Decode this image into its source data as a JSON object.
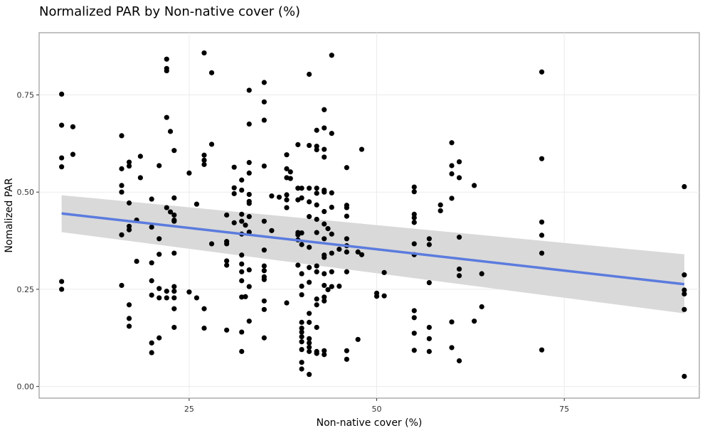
{
  "chart_data": {
    "type": "scatter",
    "title": "Normalized PAR by Non-native cover (%)",
    "xlabel": "Non-native cover (%)",
    "ylabel": "Nomalized PAR",
    "xlim": [
      5,
      93
    ],
    "ylim": [
      -0.03,
      0.91
    ],
    "x_ticks": [
      25,
      50,
      75
    ],
    "x_tick_labels": [
      "25",
      "50",
      "75"
    ],
    "y_ticks": [
      0.0,
      0.25,
      0.5,
      0.75
    ],
    "y_tick_labels": [
      "0.00",
      "0.25",
      "0.50",
      "0.75"
    ],
    "grid": true,
    "legend": "none",
    "point_color": "#000000",
    "trend": {
      "type": "linear",
      "x": [
        8,
        91
      ],
      "y": [
        0.445,
        0.263
      ],
      "ci_lower": [
        0.397,
        0.188
      ],
      "ci_upper": [
        0.492,
        0.34
      ],
      "line_color": "#5b7bde",
      "band_color": "#d9d9d9"
    },
    "points": [
      [
        8,
        0.752
      ],
      [
        8,
        0.672
      ],
      [
        8,
        0.588
      ],
      [
        8,
        0.565
      ],
      [
        8,
        0.27
      ],
      [
        8,
        0.25
      ],
      [
        9.5,
        0.668
      ],
      [
        9.5,
        0.597
      ],
      [
        16,
        0.645
      ],
      [
        16,
        0.56
      ],
      [
        16,
        0.517
      ],
      [
        16,
        0.5
      ],
      [
        16,
        0.39
      ],
      [
        16,
        0.26
      ],
      [
        17,
        0.577
      ],
      [
        17,
        0.567
      ],
      [
        17,
        0.472
      ],
      [
        17,
        0.412
      ],
      [
        17,
        0.403
      ],
      [
        17,
        0.21
      ],
      [
        17,
        0.175
      ],
      [
        17,
        0.155
      ],
      [
        18,
        0.428
      ],
      [
        18,
        0.322
      ],
      [
        18.5,
        0.592
      ],
      [
        18.5,
        0.537
      ],
      [
        20,
        0.482
      ],
      [
        20,
        0.41
      ],
      [
        20,
        0.318
      ],
      [
        20,
        0.272
      ],
      [
        20,
        0.235
      ],
      [
        20,
        0.112
      ],
      [
        20,
        0.087
      ],
      [
        21,
        0.568
      ],
      [
        21,
        0.38
      ],
      [
        21,
        0.34
      ],
      [
        21,
        0.252
      ],
      [
        21,
        0.228
      ],
      [
        21,
        0.125
      ],
      [
        22,
        0.842
      ],
      [
        22,
        0.818
      ],
      [
        22,
        0.812
      ],
      [
        22,
        0.692
      ],
      [
        22,
        0.46
      ],
      [
        22,
        0.245
      ],
      [
        22,
        0.228
      ],
      [
        22.5,
        0.656
      ],
      [
        22.5,
        0.449
      ],
      [
        23,
        0.607
      ],
      [
        23,
        0.485
      ],
      [
        23,
        0.441
      ],
      [
        23,
        0.428
      ],
      [
        23,
        0.425
      ],
      [
        23,
        0.343
      ],
      [
        23,
        0.257
      ],
      [
        23,
        0.245
      ],
      [
        23,
        0.228
      ],
      [
        23,
        0.2
      ],
      [
        23,
        0.152
      ],
      [
        25,
        0.549
      ],
      [
        25,
        0.243
      ],
      [
        26,
        0.469
      ],
      [
        26,
        0.228
      ],
      [
        27,
        0.858
      ],
      [
        27,
        0.595
      ],
      [
        27,
        0.582
      ],
      [
        27,
        0.571
      ],
      [
        27,
        0.2
      ],
      [
        27,
        0.15
      ],
      [
        28,
        0.807
      ],
      [
        28,
        0.623
      ],
      [
        28,
        0.367
      ],
      [
        30,
        0.441
      ],
      [
        30,
        0.373
      ],
      [
        30,
        0.367
      ],
      [
        30,
        0.323
      ],
      [
        30,
        0.312
      ],
      [
        30,
        0.145
      ],
      [
        31,
        0.564
      ],
      [
        31,
        0.511
      ],
      [
        31,
        0.496
      ],
      [
        31,
        0.421
      ],
      [
        32,
        0.531
      ],
      [
        32,
        0.505
      ],
      [
        32,
        0.443
      ],
      [
        32,
        0.425
      ],
      [
        32,
        0.392
      ],
      [
        32,
        0.338
      ],
      [
        32,
        0.315
      ],
      [
        32,
        0.295
      ],
      [
        32,
        0.272
      ],
      [
        32,
        0.23
      ],
      [
        32,
        0.14
      ],
      [
        32,
        0.09
      ],
      [
        32.5,
        0.415
      ],
      [
        32.5,
        0.231
      ],
      [
        33,
        0.762
      ],
      [
        33,
        0.675
      ],
      [
        33,
        0.576
      ],
      [
        33,
        0.549
      ],
      [
        33,
        0.494
      ],
      [
        33,
        0.476
      ],
      [
        33,
        0.471
      ],
      [
        33,
        0.437
      ],
      [
        33,
        0.397
      ],
      [
        33,
        0.3
      ],
      [
        33,
        0.257
      ],
      [
        33,
        0.168
      ],
      [
        35,
        0.782
      ],
      [
        35,
        0.732
      ],
      [
        35,
        0.685
      ],
      [
        35,
        0.567
      ],
      [
        35,
        0.425
      ],
      [
        35,
        0.351
      ],
      [
        35,
        0.31
      ],
      [
        35,
        0.298
      ],
      [
        35,
        0.282
      ],
      [
        35,
        0.275
      ],
      [
        35,
        0.22
      ],
      [
        35,
        0.198
      ],
      [
        35,
        0.125
      ],
      [
        36,
        0.401
      ],
      [
        36,
        0.49
      ],
      [
        37,
        0.487
      ],
      [
        38,
        0.596
      ],
      [
        38,
        0.56
      ],
      [
        38,
        0.537
      ],
      [
        38,
        0.493
      ],
      [
        38,
        0.48
      ],
      [
        38,
        0.46
      ],
      [
        38,
        0.215
      ],
      [
        38.5,
        0.552
      ],
      [
        38.5,
        0.535
      ],
      [
        39.5,
        0.622
      ],
      [
        39.5,
        0.51
      ],
      [
        39.5,
        0.48
      ],
      [
        39.5,
        0.396
      ],
      [
        39.5,
        0.39
      ],
      [
        39.5,
        0.377
      ],
      [
        39.5,
        0.312
      ],
      [
        40,
        0.51
      ],
      [
        40,
        0.485
      ],
      [
        40,
        0.395
      ],
      [
        40,
        0.365
      ],
      [
        40,
        0.29
      ],
      [
        40,
        0.258
      ],
      [
        40,
        0.236
      ],
      [
        40,
        0.165
      ],
      [
        40,
        0.15
      ],
      [
        40,
        0.14
      ],
      [
        40,
        0.128
      ],
      [
        40,
        0.115
      ],
      [
        40,
        0.095
      ],
      [
        40,
        0.062
      ],
      [
        40,
        0.045
      ],
      [
        41,
        0.803
      ],
      [
        41,
        0.62
      ],
      [
        41,
        0.51
      ],
      [
        41,
        0.475
      ],
      [
        41,
        0.437
      ],
      [
        41,
        0.358
      ],
      [
        41,
        0.306
      ],
      [
        41,
        0.268
      ],
      [
        41,
        0.188
      ],
      [
        41,
        0.165
      ],
      [
        41,
        0.123
      ],
      [
        41,
        0.112
      ],
      [
        41,
        0.101
      ],
      [
        41,
        0.09
      ],
      [
        41,
        0.031
      ],
      [
        42,
        0.659
      ],
      [
        42,
        0.618
      ],
      [
        42,
        0.609
      ],
      [
        42,
        0.51
      ],
      [
        42,
        0.497
      ],
      [
        42,
        0.467
      ],
      [
        42,
        0.43
      ],
      [
        42,
        0.396
      ],
      [
        42,
        0.31
      ],
      [
        42,
        0.295
      ],
      [
        42,
        0.225
      ],
      [
        42,
        0.21
      ],
      [
        42,
        0.152
      ],
      [
        42,
        0.09
      ],
      [
        42,
        0.085
      ],
      [
        43,
        0.712
      ],
      [
        43,
        0.665
      ],
      [
        43,
        0.61
      ],
      [
        43,
        0.59
      ],
      [
        43,
        0.505
      ],
      [
        43,
        0.5
      ],
      [
        43,
        0.45
      ],
      [
        43,
        0.418
      ],
      [
        43,
        0.38
      ],
      [
        43,
        0.338
      ],
      [
        43,
        0.332
      ],
      [
        43,
        0.29
      ],
      [
        43,
        0.26
      ],
      [
        43,
        0.23
      ],
      [
        43,
        0.22
      ],
      [
        43,
        0.092
      ],
      [
        43,
        0.082
      ],
      [
        43.5,
        0.406
      ],
      [
        43.5,
        0.249
      ],
      [
        44,
        0.852
      ],
      [
        44,
        0.651
      ],
      [
        44,
        0.498
      ],
      [
        44,
        0.461
      ],
      [
        44,
        0.392
      ],
      [
        44,
        0.343
      ],
      [
        44,
        0.295
      ],
      [
        44,
        0.257
      ],
      [
        45,
        0.353
      ],
      [
        45,
        0.258
      ],
      [
        46,
        0.563
      ],
      [
        46,
        0.466
      ],
      [
        46,
        0.46
      ],
      [
        46,
        0.438
      ],
      [
        46,
        0.38
      ],
      [
        46,
        0.362
      ],
      [
        46,
        0.346
      ],
      [
        46,
        0.295
      ],
      [
        46,
        0.092
      ],
      [
        46,
        0.07
      ],
      [
        47.5,
        0.346
      ],
      [
        48,
        0.61
      ],
      [
        48,
        0.339
      ],
      [
        47.5,
        0.121
      ],
      [
        50,
        0.24
      ],
      [
        50,
        0.232
      ],
      [
        51,
        0.293
      ],
      [
        51,
        0.233
      ],
      [
        55,
        0.513
      ],
      [
        55,
        0.501
      ],
      [
        55,
        0.443
      ],
      [
        55,
        0.434
      ],
      [
        55,
        0.422
      ],
      [
        55,
        0.367
      ],
      [
        55,
        0.339
      ],
      [
        55,
        0.195
      ],
      [
        55,
        0.177
      ],
      [
        55,
        0.137
      ],
      [
        55,
        0.093
      ],
      [
        57,
        0.38
      ],
      [
        57,
        0.365
      ],
      [
        57,
        0.267
      ],
      [
        57,
        0.152
      ],
      [
        57,
        0.123
      ],
      [
        57,
        0.09
      ],
      [
        58.5,
        0.467
      ],
      [
        58.5,
        0.452
      ],
      [
        60,
        0.627
      ],
      [
        60,
        0.568
      ],
      [
        60,
        0.547
      ],
      [
        60,
        0.484
      ],
      [
        60,
        0.166
      ],
      [
        60,
        0.1
      ],
      [
        61,
        0.578
      ],
      [
        61,
        0.537
      ],
      [
        61,
        0.384
      ],
      [
        61,
        0.302
      ],
      [
        61,
        0.285
      ],
      [
        61,
        0.066
      ],
      [
        63,
        0.517
      ],
      [
        63,
        0.168
      ],
      [
        64,
        0.29
      ],
      [
        64,
        0.205
      ],
      [
        72,
        0.809
      ],
      [
        72,
        0.586
      ],
      [
        72,
        0.423
      ],
      [
        72,
        0.389
      ],
      [
        72,
        0.343
      ],
      [
        72,
        0.094
      ],
      [
        91,
        0.514
      ],
      [
        91,
        0.287
      ],
      [
        91,
        0.248
      ],
      [
        91,
        0.238
      ],
      [
        91,
        0.198
      ],
      [
        91,
        0.026
      ]
    ]
  }
}
